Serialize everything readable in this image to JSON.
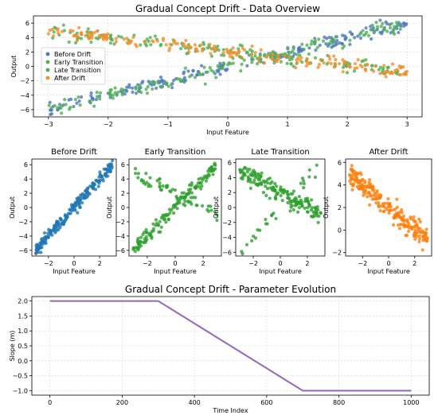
{
  "chart_data": [
    {
      "type": "scatter",
      "title": "Gradual Concept Drift - Data Overview",
      "xlabel": "Input Feature",
      "ylabel": "Output",
      "xlim": [
        -3.25,
        3.25
      ],
      "ylim": [
        -7,
        7
      ],
      "xticks": [
        -3,
        -2,
        -1,
        0,
        1,
        2,
        3
      ],
      "yticks": [
        -6,
        -4,
        -2,
        0,
        2,
        4,
        6
      ],
      "grid": true,
      "legend_position": "center-left",
      "series": [
        {
          "name": "Before Drift",
          "color": "#4c78bd",
          "slope": 2,
          "points": 200
        },
        {
          "name": "Early Transition",
          "color": "#4caf50",
          "slope": 2,
          "mix_negative": 0.2,
          "points": 160
        },
        {
          "name": "Late Transition",
          "color": "#4caf50",
          "slope": -1,
          "mix_positive": 0.15,
          "points": 160
        },
        {
          "name": "After Drift",
          "color": "#f28e2b",
          "slope": -1,
          "points": 200
        }
      ]
    },
    {
      "type": "scatter",
      "title": "Before Drift",
      "xlabel": "Input Feature",
      "ylabel": "Output",
      "xlim": [
        -3.3,
        3.3
      ],
      "ylim": [
        -6.8,
        6.8
      ],
      "xticks": [
        -2,
        0,
        2
      ],
      "yticks": [
        -6,
        -4,
        -2,
        0,
        2,
        4,
        6
      ],
      "color": "#1f77b4",
      "slope": 2
    },
    {
      "type": "scatter",
      "title": "Early Transition",
      "xlabel": "Input Feature",
      "ylabel": "Output",
      "xlim": [
        -3.3,
        3.3
      ],
      "ylim": [
        -6.8,
        6.8
      ],
      "xticks": [
        -2,
        0,
        2
      ],
      "yticks": [
        -6,
        -4,
        -2,
        0,
        2,
        4,
        6
      ],
      "color": "#2ca02c",
      "slope": 2
    },
    {
      "type": "scatter",
      "title": "Late Transition",
      "xlabel": "Input Feature",
      "ylabel": "Output",
      "xlim": [
        -3.3,
        3.3
      ],
      "ylim": [
        -6.5,
        6.5
      ],
      "xticks": [
        -2,
        0,
        2
      ],
      "yticks": [
        -6,
        -4,
        -2,
        0,
        2,
        4,
        6
      ],
      "color": "#2ca02c",
      "slope": -1
    },
    {
      "type": "scatter",
      "title": "After Drift",
      "xlabel": "Input Feature",
      "ylabel": "Output",
      "xlim": [
        -3.3,
        3.3
      ],
      "ylim": [
        -2.3,
        6.3
      ],
      "xticks": [
        -2,
        0,
        2
      ],
      "yticks": [
        -2,
        0,
        2,
        4,
        6
      ],
      "color": "#ff7f0e",
      "slope": -1
    },
    {
      "type": "line",
      "title": "Gradual Concept Drift - Parameter Evolution",
      "xlabel": "Time Index",
      "ylabel": "Slope (m)",
      "xlim": [
        -50,
        1050
      ],
      "ylim": [
        -1.15,
        2.15
      ],
      "xticks": [
        0,
        200,
        400,
        600,
        800,
        1000
      ],
      "yticks": [
        -1.0,
        -0.5,
        0.0,
        0.5,
        1.0,
        1.5,
        2.0
      ],
      "grid": true,
      "color": "#9467bd",
      "x": [
        0,
        300,
        700,
        1000
      ],
      "y": [
        2.0,
        2.0,
        -1.0,
        -1.0
      ]
    }
  ]
}
